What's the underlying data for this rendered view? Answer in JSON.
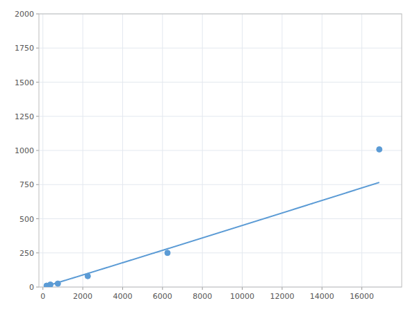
{
  "chart_data": {
    "type": "scatter",
    "x": [
      188,
      375,
      750,
      2250,
      6250,
      16875
    ],
    "values": [
      10,
      18,
      25,
      80,
      250,
      1008
    ],
    "color": "#5b9bd5",
    "trend_line": {
      "type": "power",
      "power": 1.013227,
      "coefficient": 0.039911
    },
    "xlim": [
      -200,
      18000
    ],
    "ylim": [
      0,
      2000
    ],
    "xticks": [
      0,
      2000,
      4000,
      6000,
      8000,
      10000,
      12000,
      14000,
      16000
    ],
    "yticks": [
      0,
      250,
      500,
      750,
      1000,
      1250,
      1500,
      1750,
      2000
    ],
    "grid": true
  }
}
